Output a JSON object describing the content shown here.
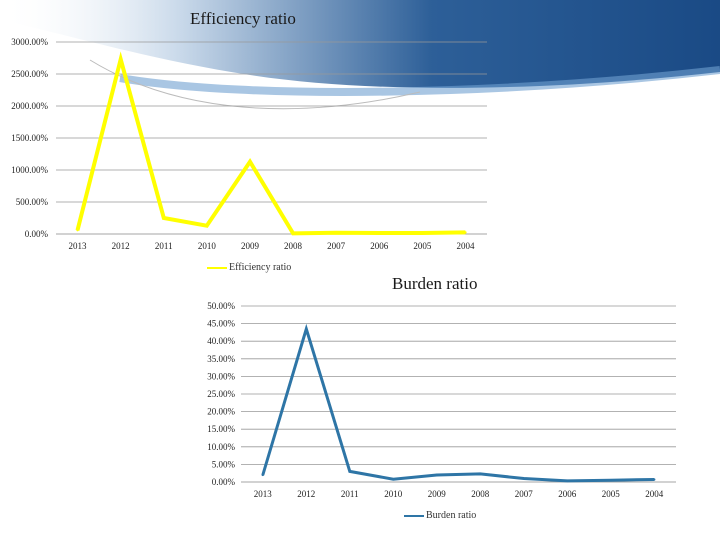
{
  "theme": {
    "banner_color": "#1f4e8c",
    "banner_light": "#6fa0d0"
  },
  "chart_data": [
    {
      "type": "line",
      "title": "Efficiency ratio",
      "categories": [
        "2013",
        "2012",
        "2011",
        "2010",
        "2009",
        "2008",
        "2007",
        "2006",
        "2005",
        "2004"
      ],
      "series": [
        {
          "name": "Efficiency ratio",
          "color": "#ffff00",
          "values": [
            60,
            2730,
            250,
            130,
            1130,
            10,
            20,
            15,
            15,
            25
          ]
        }
      ],
      "y_ticks": [
        "0.00%",
        "500.00%",
        "1000.00%",
        "1500.00%",
        "2000.00%",
        "2500.00%",
        "3000.00%"
      ],
      "ylim": [
        0,
        3000
      ],
      "grid": true,
      "legend_position": "bottom"
    },
    {
      "type": "line",
      "title": "Burden ratio",
      "categories": [
        "2013",
        "2012",
        "2011",
        "2010",
        "2009",
        "2008",
        "2007",
        "2006",
        "2005",
        "2004"
      ],
      "series": [
        {
          "name": "Burden ratio",
          "color": "#2e75a6",
          "values": [
            2.0,
            43.5,
            3.0,
            0.8,
            2.0,
            2.3,
            1.0,
            0.3,
            0.5,
            0.7
          ]
        }
      ],
      "y_ticks": [
        "0.00%",
        "5.00%",
        "10.00%",
        "15.00%",
        "20.00%",
        "25.00%",
        "30.00%",
        "35.00%",
        "40.00%",
        "45.00%",
        "50.00%"
      ],
      "ylim": [
        0,
        50
      ],
      "grid": true,
      "legend_position": "bottom"
    }
  ]
}
